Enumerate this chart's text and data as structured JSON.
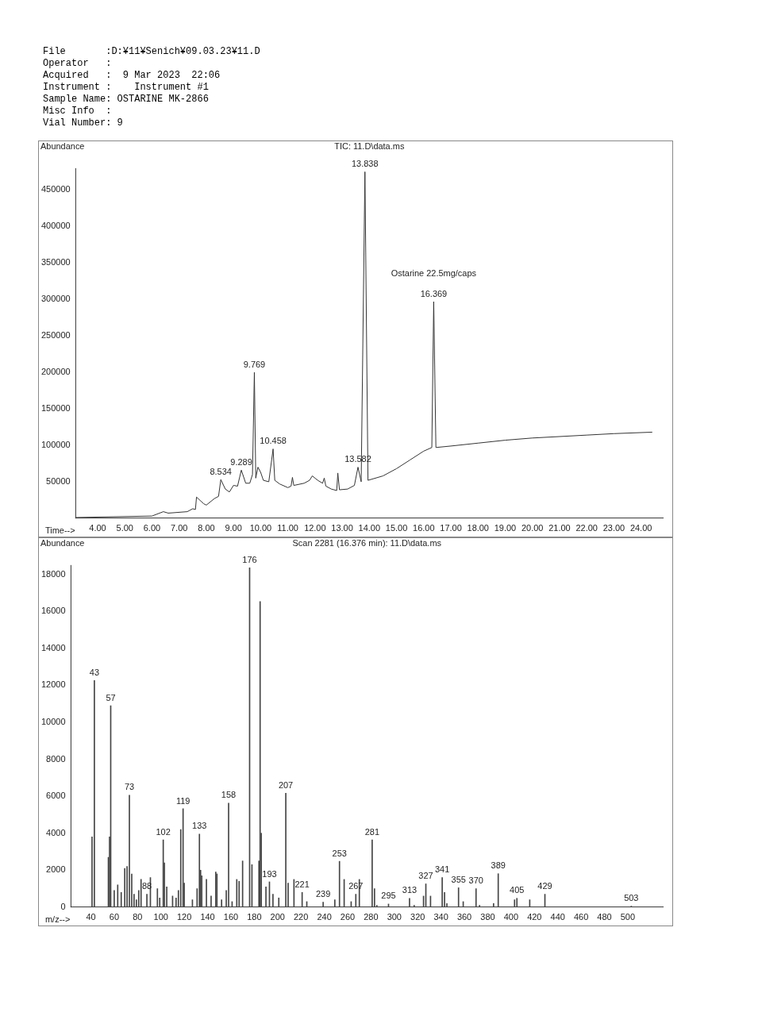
{
  "chart_data": [
    {
      "type": "line",
      "title": "TIC: 11.D\\data.ms",
      "xlabel": "Time-->",
      "ylabel": "Abundance",
      "color": "#333333",
      "annotations": [
        "File       :D:¥11¥Senich¥09.03.23¥11.D",
        "Operator   :",
        "Acquired   :  9 Mar 2023  22:06",
        "Instrument :    Instrument #1",
        "Sample Name: OSTARINE MK-2866",
        "Misc Info  :",
        "Vial Number: 9",
        {
          "text": "8.534",
          "x": 8.534,
          "y": 53000
        },
        {
          "text": "9.289",
          "x": 9.289,
          "y": 66000
        },
        {
          "text": "9.769",
          "x": 9.769,
          "y": 200000
        },
        {
          "text": "10.458",
          "x": 10.458,
          "y": 95000
        },
        {
          "text": "13.582",
          "x": 13.582,
          "y": 70000
        },
        {
          "text": "13.838",
          "x": 13.838,
          "y": 475000
        },
        {
          "text": "16.369",
          "x": 16.369,
          "y": 297000
        },
        {
          "text": "Ostarine 22.5mg/caps",
          "x": 16.369,
          "y": 297000
        }
      ],
      "x": [
        3.2,
        6.0,
        6.42,
        6.6,
        7.3,
        7.5,
        7.6,
        7.64,
        7.9,
        8.0,
        8.3,
        8.45,
        8.534,
        8.7,
        8.85,
        9.0,
        9.15,
        9.289,
        9.45,
        9.6,
        9.7,
        9.769,
        9.82,
        9.9,
        10.0,
        10.1,
        10.3,
        10.458,
        10.52,
        10.7,
        11.0,
        11.12,
        11.17,
        11.22,
        11.6,
        11.8,
        11.9,
        12.1,
        12.28,
        12.34,
        12.4,
        12.6,
        12.8,
        12.84,
        12.9,
        13.2,
        13.45,
        13.582,
        13.7,
        13.838,
        13.95,
        14.5,
        15.0,
        15.5,
        16.0,
        16.3,
        16.369,
        16.45,
        17.0,
        18.0,
        19.0,
        20.0,
        21.0,
        22.0,
        23.0,
        24.4
      ],
      "values": [
        1000,
        3000,
        9000,
        7000,
        9000,
        13000,
        12000,
        29000,
        20000,
        18000,
        27000,
        30000,
        53000,
        40000,
        36000,
        45000,
        44000,
        66000,
        48000,
        48000,
        60000,
        200000,
        55000,
        70000,
        63000,
        52000,
        50000,
        95000,
        52000,
        47000,
        42000,
        44000,
        56000,
        45000,
        48000,
        52000,
        58000,
        52000,
        48000,
        55000,
        44000,
        40000,
        38000,
        62000,
        39000,
        40000,
        45000,
        70000,
        50000,
        475000,
        52000,
        58000,
        68000,
        80000,
        92000,
        97000,
        297000,
        97000,
        99000,
        103000,
        107000,
        110000,
        112000,
        114000,
        116000,
        118000
      ],
      "xlim": [
        3.2,
        24.8
      ],
      "ylim": [
        0,
        480000
      ],
      "xticks": [
        {
          "value": 4,
          "label": "4.00"
        },
        {
          "value": 5,
          "label": "5.00"
        },
        {
          "value": 6,
          "label": "6.00"
        },
        {
          "value": 7,
          "label": "7.00"
        },
        {
          "value": 8,
          "label": "8.00"
        },
        {
          "value": 9,
          "label": "9.00"
        },
        {
          "value": 10,
          "label": "10.00"
        },
        {
          "value": 11,
          "label": "11.00"
        },
        {
          "value": 12,
          "label": "12.00"
        },
        {
          "value": 13,
          "label": "13.00"
        },
        {
          "value": 14,
          "label": "14.00"
        },
        {
          "value": 15,
          "label": "15.00"
        },
        {
          "value": 16,
          "label": "16.00"
        },
        {
          "value": 17,
          "label": "17.00"
        },
        {
          "value": 18,
          "label": "18.00"
        },
        {
          "value": 19,
          "label": "19.00"
        },
        {
          "value": 20,
          "label": "20.00"
        },
        {
          "value": 21,
          "label": "21.00"
        },
        {
          "value": 22,
          "label": "22.00"
        },
        {
          "value": 23,
          "label": "23.00"
        },
        {
          "value": 24,
          "label": "24.00"
        }
      ],
      "yticks": [
        50000,
        100000,
        150000,
        200000,
        250000,
        300000,
        350000,
        400000,
        450000
      ]
    },
    {
      "type": "bar",
      "title": "Scan 2281 (16.376 min): 11.D\\data.ms",
      "xlabel": "m/z-->",
      "ylabel": "Abundance",
      "color": "#444444",
      "annotations": [
        {
          "text": "43",
          "x": 43,
          "y": 12260
        },
        {
          "text": "57",
          "x": 57,
          "y": 10890
        },
        {
          "text": "73",
          "x": 73,
          "y": 6050
        },
        {
          "text": "88",
          "x": 88,
          "y": 700
        },
        {
          "text": "102",
          "x": 102,
          "y": 3640
        },
        {
          "text": "119",
          "x": 119,
          "y": 5320
        },
        {
          "text": "133",
          "x": 133,
          "y": 3950
        },
        {
          "text": "158",
          "x": 158,
          "y": 5630
        },
        {
          "text": "176",
          "x": 176,
          "y": 18350
        },
        {
          "text": "193",
          "x": 193,
          "y": 1370
        },
        {
          "text": "207",
          "x": 207,
          "y": 6160
        },
        {
          "text": "221",
          "x": 221,
          "y": 800
        },
        {
          "text": "239",
          "x": 239,
          "y": 270
        },
        {
          "text": "253",
          "x": 253,
          "y": 2480
        },
        {
          "text": "267",
          "x": 267,
          "y": 700
        },
        {
          "text": "281",
          "x": 281,
          "y": 3640
        },
        {
          "text": "295",
          "x": 295,
          "y": 170
        },
        {
          "text": "313",
          "x": 313,
          "y": 480
        },
        {
          "text": "327",
          "x": 327,
          "y": 1260
        },
        {
          "text": "341",
          "x": 341,
          "y": 1600
        },
        {
          "text": "355",
          "x": 355,
          "y": 1050
        },
        {
          "text": "370",
          "x": 370,
          "y": 1000
        },
        {
          "text": "389",
          "x": 389,
          "y": 1810
        },
        {
          "text": "405",
          "x": 405,
          "y": 480
        },
        {
          "text": "429",
          "x": 429,
          "y": 700
        },
        {
          "text": "503",
          "x": 503,
          "y": 60
        }
      ],
      "x": [
        41,
        43,
        55,
        56,
        57,
        60,
        63,
        66,
        69,
        71,
        73,
        75,
        77,
        79,
        81,
        83,
        88,
        91,
        97,
        99,
        102,
        103,
        105,
        110,
        113,
        115,
        117,
        119,
        120,
        127,
        131,
        133,
        134,
        135,
        139,
        143,
        147,
        148,
        152,
        156,
        158,
        161,
        165,
        167,
        170,
        176,
        178,
        184,
        185,
        186,
        190,
        193,
        196,
        201,
        207,
        209,
        214,
        221,
        225,
        239,
        249,
        253,
        257,
        263,
        267,
        270,
        281,
        283,
        285,
        295,
        313,
        317,
        325,
        327,
        331,
        341,
        343,
        345,
        355,
        359,
        370,
        373,
        385,
        389,
        403,
        405,
        416,
        429,
        503
      ],
      "values": [
        3800,
        12260,
        2700,
        3800,
        10890,
        900,
        1200,
        800,
        2100,
        2200,
        6050,
        1800,
        700,
        400,
        900,
        1500,
        700,
        1600,
        1000,
        500,
        3640,
        2400,
        1100,
        600,
        500,
        900,
        4200,
        5320,
        1300,
        400,
        1000,
        3950,
        2000,
        1700,
        1500,
        600,
        1900,
        1800,
        400,
        900,
        5630,
        300,
        1500,
        1400,
        2500,
        18350,
        2300,
        2500,
        16530,
        4000,
        1100,
        1370,
        700,
        500,
        6160,
        1300,
        1500,
        800,
        300,
        270,
        400,
        2480,
        1500,
        300,
        700,
        1500,
        3640,
        1000,
        100,
        170,
        480,
        100,
        600,
        1260,
        600,
        1600,
        800,
        200,
        1050,
        300,
        1000,
        100,
        200,
        1810,
        400,
        480,
        400,
        700,
        60
      ],
      "xlim": [
        23,
        530
      ],
      "ylim": [
        0,
        18500
      ],
      "xticks": [
        40,
        60,
        80,
        100,
        120,
        140,
        160,
        180,
        200,
        220,
        240,
        260,
        280,
        300,
        320,
        340,
        360,
        380,
        400,
        420,
        440,
        460,
        480,
        500
      ],
      "yticks": [
        0,
        2000,
        4000,
        6000,
        8000,
        10000,
        12000,
        14000,
        16000,
        18000
      ]
    }
  ]
}
